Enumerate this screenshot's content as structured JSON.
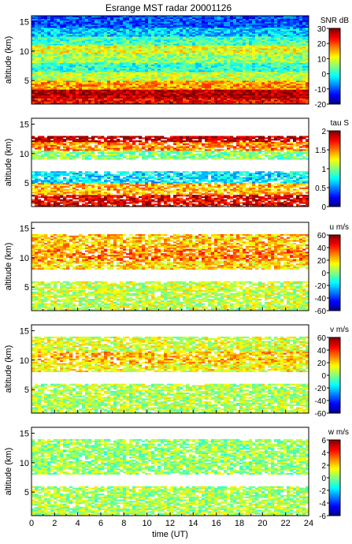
{
  "title": "Esrange MST radar 20001126",
  "chart_data": [
    {
      "type": "heatmap",
      "title": "Esrange MST radar 20001126",
      "quantity": "SNR",
      "colorbar_label": "SNR dB",
      "colorbar_ticks": [
        "-20",
        "-10",
        "0",
        "10",
        "20",
        "30"
      ],
      "colorbar_range": [
        -20,
        30
      ],
      "ylabel": "altitude (km)",
      "yticks": [
        "5",
        "10",
        "15"
      ],
      "ylim": [
        1,
        16
      ],
      "xlim": [
        0,
        24
      ],
      "layers": [
        {
          "alt": [
            1,
            2
          ],
          "value": 24
        },
        {
          "alt": [
            2,
            3.5
          ],
          "value": 28
        },
        {
          "alt": [
            3.5,
            5
          ],
          "value": 16
        },
        {
          "alt": [
            5,
            6.5
          ],
          "value": 8
        },
        {
          "alt": [
            6.5,
            8
          ],
          "value": 1
        },
        {
          "alt": [
            8,
            9.5
          ],
          "value": 6
        },
        {
          "alt": [
            9.5,
            11
          ],
          "value": 10
        },
        {
          "alt": [
            11,
            12.5
          ],
          "value": 2
        },
        {
          "alt": [
            12.5,
            14
          ],
          "value": -4
        },
        {
          "alt": [
            14,
            16
          ],
          "value": -10
        }
      ]
    },
    {
      "type": "heatmap",
      "quantity": "tau",
      "colorbar_label": "tau S",
      "colorbar_ticks": [
        "0",
        "0.5",
        "1",
        "1.5",
        "2"
      ],
      "colorbar_range": [
        0,
        2
      ],
      "ylabel": "altitude (km)",
      "yticks": [
        "5",
        "10",
        "15"
      ],
      "ylim": [
        1,
        16
      ],
      "xlim": [
        0,
        24
      ],
      "layers": [
        {
          "alt": [
            1,
            3
          ],
          "value": 1.8
        },
        {
          "alt": [
            3,
            5
          ],
          "value": 1.4
        },
        {
          "alt": [
            5,
            7
          ],
          "value": 0.7
        },
        {
          "alt": [
            9,
            10.5
          ],
          "value": 1.0
        },
        {
          "alt": [
            10.5,
            12
          ],
          "value": 1.5
        },
        {
          "alt": [
            12,
            13
          ],
          "value": 1.9
        }
      ]
    },
    {
      "type": "heatmap",
      "quantity": "u",
      "colorbar_label": "u m/s",
      "colorbar_ticks": [
        "-60",
        "-40",
        "-20",
        "0",
        "20",
        "40",
        "60"
      ],
      "colorbar_range": [
        -60,
        60
      ],
      "ylabel": "altitude (km)",
      "yticks": [
        "5",
        "10",
        "15"
      ],
      "ylim": [
        1,
        16
      ],
      "xlim": [
        0,
        24
      ],
      "layers": [
        {
          "alt": [
            1,
            6
          ],
          "value": 8
        },
        {
          "alt": [
            8,
            9.5
          ],
          "value": 20
        },
        {
          "alt": [
            9.5,
            11.5
          ],
          "value": 30
        },
        {
          "alt": [
            11.5,
            14
          ],
          "value": 22
        }
      ]
    },
    {
      "type": "heatmap",
      "quantity": "v",
      "colorbar_label": "v m/s",
      "colorbar_ticks": [
        "-60",
        "-40",
        "-20",
        "0",
        "20",
        "40",
        "60"
      ],
      "colorbar_range": [
        -60,
        60
      ],
      "ylabel": "altitude (km)",
      "yticks": [
        "5",
        "10",
        "15"
      ],
      "ylim": [
        1,
        16
      ],
      "xlim": [
        0,
        24
      ],
      "layers": [
        {
          "alt": [
            1,
            6
          ],
          "value": 6
        },
        {
          "alt": [
            8,
            9.5
          ],
          "value": 14
        },
        {
          "alt": [
            9.5,
            11.5
          ],
          "value": 22
        },
        {
          "alt": [
            11.5,
            14
          ],
          "value": 10
        }
      ]
    },
    {
      "type": "heatmap",
      "quantity": "w",
      "colorbar_label": "w m/s",
      "colorbar_ticks": [
        "-6",
        "-4",
        "-2",
        "0",
        "2",
        "4",
        "6"
      ],
      "colorbar_range": [
        -6,
        6
      ],
      "ylabel": "altitude (km)",
      "xlabel": "time (UT)",
      "yticks": [
        "5",
        "10",
        "15"
      ],
      "xticks": [
        "0",
        "2",
        "4",
        "6",
        "8",
        "10",
        "12",
        "14",
        "16",
        "18",
        "20",
        "22",
        "24"
      ],
      "ylim": [
        1,
        16
      ],
      "xlim": [
        0,
        24
      ],
      "layers": [
        {
          "alt": [
            1,
            6
          ],
          "value": 0.5
        },
        {
          "alt": [
            8,
            14
          ],
          "value": 0.3
        }
      ]
    }
  ]
}
